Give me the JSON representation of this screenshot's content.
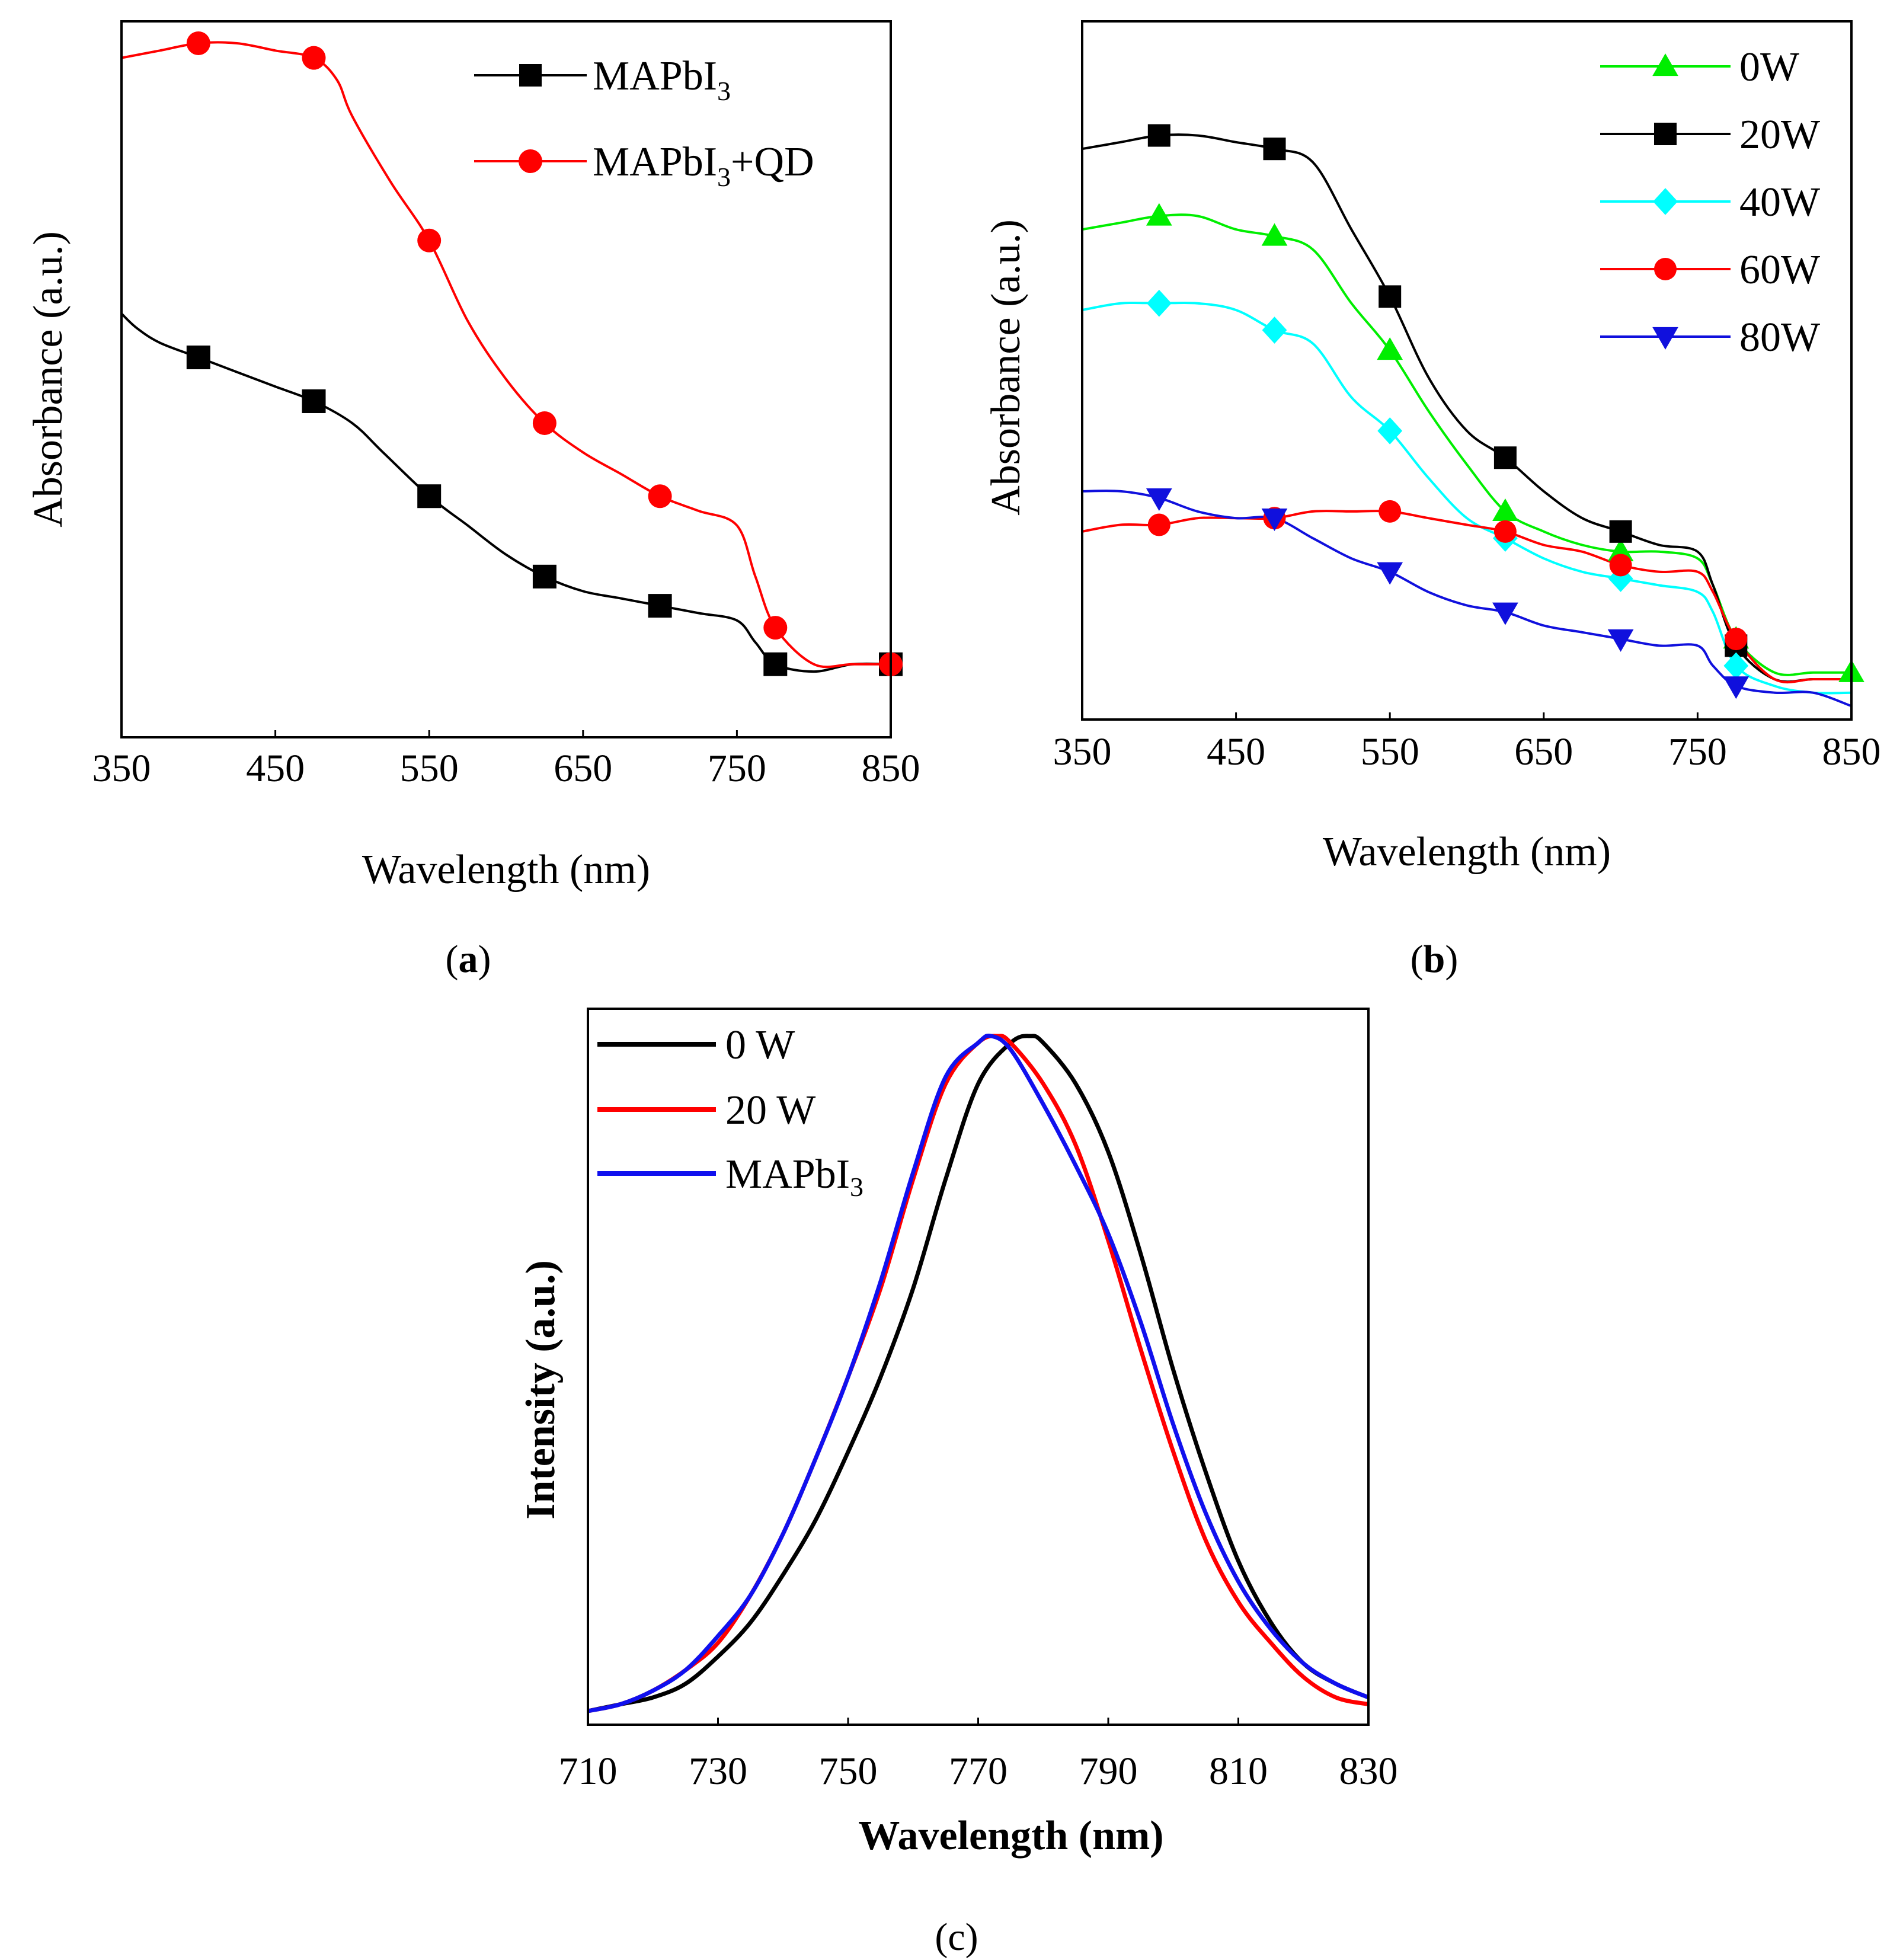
{
  "chart_data": [
    {
      "id": "a",
      "type": "line",
      "panel_label": "a",
      "xlabel": "Wavelength (nm)",
      "ylabel": "Absorbance (a.u.)",
      "xlim": [
        350,
        850
      ],
      "ylim": [
        0,
        1
      ],
      "x_ticks": [
        350,
        450,
        550,
        650,
        750,
        850
      ],
      "y_ticks_shown": false,
      "legend_position": "top-right",
      "series": [
        {
          "name": "MAPbI3",
          "label_main": "MAPbI",
          "label_sub": "3",
          "label_after": "",
          "color": "#000000",
          "marker": "square",
          "x": [
            350,
            360,
            375,
            400,
            425,
            450,
            475,
            500,
            520,
            550,
            575,
            600,
            625,
            650,
            675,
            700,
            725,
            750,
            762,
            775,
            800,
            825,
            850
          ],
          "y": [
            0.58,
            0.56,
            0.54,
            0.52,
            0.5,
            0.48,
            0.46,
            0.43,
            0.39,
            0.33,
            0.29,
            0.25,
            0.22,
            0.2,
            0.19,
            0.18,
            0.17,
            0.16,
            0.13,
            0.1,
            0.09,
            0.1,
            0.1
          ],
          "marker_x": [
            400,
            475,
            550,
            625,
            700,
            775,
            850
          ],
          "marker_y": [
            0.52,
            0.46,
            0.33,
            0.22,
            0.18,
            0.1,
            0.1
          ]
        },
        {
          "name": "MAPbI3+QD",
          "label_main": "MAPbI",
          "label_sub": "3",
          "label_after": "+QD",
          "color": "#ff0000",
          "marker": "circle",
          "x": [
            350,
            375,
            400,
            425,
            450,
            475,
            490,
            500,
            525,
            550,
            575,
            600,
            625,
            650,
            675,
            700,
            725,
            750,
            762,
            775,
            800,
            825,
            850
          ],
          "y": [
            0.93,
            0.94,
            0.95,
            0.95,
            0.94,
            0.93,
            0.9,
            0.85,
            0.76,
            0.68,
            0.57,
            0.49,
            0.43,
            0.39,
            0.36,
            0.33,
            0.31,
            0.29,
            0.22,
            0.15,
            0.1,
            0.1,
            0.1
          ],
          "marker_x": [
            400,
            475,
            550,
            625,
            700,
            775,
            850
          ],
          "marker_y": [
            0.95,
            0.93,
            0.68,
            0.43,
            0.33,
            0.15,
            0.1
          ]
        }
      ]
    },
    {
      "id": "b",
      "type": "line",
      "panel_label": "b",
      "xlabel": "Wavelength (nm)",
      "ylabel": "Absorbance (a.u.)",
      "xlim": [
        350,
        850
      ],
      "ylim": [
        0,
        1
      ],
      "x_ticks": [
        350,
        450,
        550,
        650,
        750,
        850
      ],
      "y_ticks_shown": false,
      "legend_position": "top-right",
      "series": [
        {
          "name": "0W",
          "color": "#00ee00",
          "marker": "triangle-up",
          "x": [
            350,
            375,
            400,
            425,
            450,
            475,
            500,
            525,
            550,
            575,
            600,
            625,
            650,
            675,
            700,
            725,
            750,
            760,
            775,
            800,
            825,
            850
          ],
          "y": [
            0.73,
            0.74,
            0.75,
            0.75,
            0.73,
            0.72,
            0.7,
            0.62,
            0.55,
            0.46,
            0.38,
            0.31,
            0.28,
            0.26,
            0.25,
            0.25,
            0.24,
            0.2,
            0.12,
            0.07,
            0.07,
            0.07
          ],
          "marker_x": [
            400,
            475,
            550,
            625,
            700,
            775,
            850
          ],
          "marker_y": [
            0.75,
            0.72,
            0.55,
            0.31,
            0.25,
            0.12,
            0.07
          ]
        },
        {
          "name": "20W",
          "color": "#000000",
          "marker": "square",
          "x": [
            350,
            375,
            400,
            425,
            450,
            475,
            500,
            525,
            550,
            575,
            600,
            625,
            650,
            675,
            700,
            725,
            750,
            760,
            775,
            800,
            825,
            850
          ],
          "y": [
            0.85,
            0.86,
            0.87,
            0.87,
            0.86,
            0.85,
            0.83,
            0.73,
            0.63,
            0.51,
            0.43,
            0.39,
            0.34,
            0.3,
            0.28,
            0.26,
            0.25,
            0.2,
            0.11,
            0.06,
            0.06,
            0.06
          ],
          "marker_x": [
            400,
            475,
            550,
            625,
            700,
            775
          ],
          "marker_y": [
            0.87,
            0.85,
            0.63,
            0.39,
            0.28,
            0.11
          ]
        },
        {
          "name": "40W",
          "color": "#00ffff",
          "marker": "diamond",
          "x": [
            350,
            375,
            400,
            425,
            450,
            475,
            500,
            525,
            550,
            575,
            600,
            625,
            650,
            675,
            700,
            725,
            750,
            760,
            775,
            800,
            825,
            850
          ],
          "y": [
            0.61,
            0.62,
            0.62,
            0.62,
            0.61,
            0.58,
            0.56,
            0.48,
            0.43,
            0.36,
            0.3,
            0.27,
            0.24,
            0.22,
            0.21,
            0.2,
            0.19,
            0.16,
            0.08,
            0.05,
            0.04,
            0.04
          ],
          "marker_x": [
            400,
            475,
            550,
            625,
            700,
            775
          ],
          "marker_y": [
            0.62,
            0.58,
            0.43,
            0.27,
            0.21,
            0.08
          ]
        },
        {
          "name": "60W",
          "color": "#ff0000",
          "marker": "circle",
          "x": [
            350,
            375,
            400,
            425,
            450,
            475,
            500,
            525,
            550,
            575,
            600,
            625,
            650,
            675,
            700,
            725,
            750,
            760,
            775,
            800,
            825,
            850
          ],
          "y": [
            0.28,
            0.29,
            0.29,
            0.3,
            0.3,
            0.3,
            0.31,
            0.31,
            0.31,
            0.3,
            0.29,
            0.28,
            0.26,
            0.25,
            0.23,
            0.22,
            0.22,
            0.19,
            0.12,
            0.06,
            0.06,
            0.06
          ],
          "marker_x": [
            400,
            475,
            550,
            625,
            700,
            775
          ],
          "marker_y": [
            0.29,
            0.3,
            0.31,
            0.28,
            0.23,
            0.12
          ]
        },
        {
          "name": "80W",
          "color": "#1010dd",
          "marker": "triangle-down",
          "x": [
            350,
            375,
            400,
            425,
            450,
            475,
            500,
            525,
            550,
            575,
            600,
            625,
            650,
            675,
            700,
            725,
            750,
            760,
            775,
            800,
            825,
            850
          ],
          "y": [
            0.34,
            0.34,
            0.33,
            0.31,
            0.3,
            0.3,
            0.27,
            0.24,
            0.22,
            0.19,
            0.17,
            0.16,
            0.14,
            0.13,
            0.12,
            0.11,
            0.11,
            0.08,
            0.05,
            0.04,
            0.04,
            0.02
          ],
          "marker_x": [
            400,
            475,
            550,
            625,
            700,
            775
          ],
          "marker_y": [
            0.33,
            0.3,
            0.22,
            0.16,
            0.12,
            0.05
          ]
        }
      ]
    },
    {
      "id": "c",
      "type": "line",
      "panel_label": "c",
      "xlabel": "Wavelength (nm)",
      "ylabel": "Intensity (a.u.)",
      "xlim": [
        710,
        830
      ],
      "ylim": [
        0,
        1
      ],
      "x_ticks": [
        710,
        730,
        750,
        770,
        790,
        810,
        830
      ],
      "y_ticks_shown": false,
      "legend_position": "top-left",
      "series": [
        {
          "name": "0 W",
          "color": "#000000",
          "x": [
            710,
            715,
            720,
            725,
            730,
            735,
            740,
            745,
            750,
            755,
            760,
            765,
            770,
            775,
            778,
            780,
            785,
            790,
            795,
            800,
            805,
            810,
            815,
            820,
            825,
            830
          ],
          "y": [
            0.01,
            0.02,
            0.03,
            0.05,
            0.09,
            0.14,
            0.21,
            0.29,
            0.39,
            0.5,
            0.63,
            0.79,
            0.93,
            0.99,
            1.0,
            0.99,
            0.93,
            0.83,
            0.68,
            0.51,
            0.36,
            0.23,
            0.14,
            0.08,
            0.05,
            0.03
          ]
        },
        {
          "name": "20 W",
          "color": "#ff0000",
          "x": [
            710,
            715,
            720,
            725,
            730,
            735,
            740,
            745,
            750,
            755,
            760,
            765,
            770,
            773,
            775,
            780,
            785,
            790,
            795,
            800,
            805,
            810,
            815,
            820,
            825,
            830
          ],
          "y": [
            0.01,
            0.02,
            0.04,
            0.07,
            0.11,
            0.18,
            0.27,
            0.38,
            0.5,
            0.63,
            0.79,
            0.93,
            0.99,
            1.0,
            0.99,
            0.93,
            0.84,
            0.7,
            0.54,
            0.39,
            0.26,
            0.17,
            0.11,
            0.06,
            0.03,
            0.02
          ]
        },
        {
          "name": "MAPbI3",
          "label_main": "MAPbI",
          "label_sub": "3",
          "color": "#1010ee",
          "x": [
            710,
            715,
            720,
            725,
            730,
            735,
            740,
            745,
            750,
            755,
            760,
            765,
            770,
            772,
            775,
            780,
            785,
            790,
            795,
            800,
            805,
            810,
            815,
            820,
            825,
            830
          ],
          "y": [
            0.01,
            0.02,
            0.04,
            0.07,
            0.12,
            0.18,
            0.27,
            0.38,
            0.5,
            0.64,
            0.8,
            0.94,
            0.99,
            1.0,
            0.98,
            0.9,
            0.81,
            0.71,
            0.58,
            0.43,
            0.3,
            0.2,
            0.13,
            0.08,
            0.05,
            0.03
          ]
        }
      ]
    }
  ]
}
